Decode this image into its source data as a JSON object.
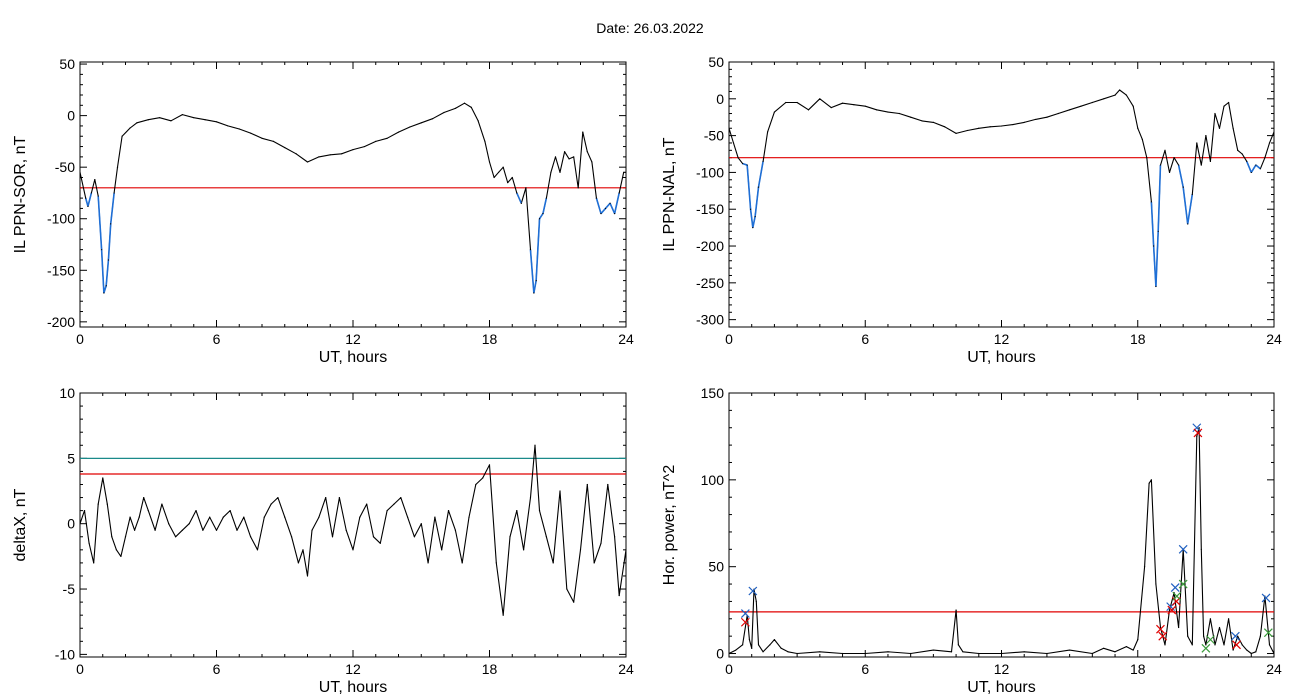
{
  "figure": {
    "date_label": "Date:",
    "date_value": "26.03.2022"
  },
  "chart_data": [
    {
      "type": "line",
      "xlabel": "UT, hours",
      "ylabel": "IL PPN-SOR, nT",
      "xlim": [
        0,
        24
      ],
      "ylim": [
        -205,
        52
      ],
      "xticks": [
        0,
        6,
        12,
        18,
        24
      ],
      "yticks": [
        -200,
        -150,
        -100,
        -50,
        0,
        50
      ],
      "x": [
        0,
        0.25,
        0.35,
        0.5,
        0.65,
        0.8,
        0.95,
        1.05,
        1.15,
        1.25,
        1.35,
        1.5,
        1.65,
        1.85,
        2.2,
        2.5,
        3.0,
        3.5,
        4.0,
        4.5,
        5.0,
        5.5,
        6.0,
        6.5,
        7.0,
        7.5,
        8.0,
        8.5,
        9.0,
        9.5,
        10.0,
        10.5,
        11.0,
        11.5,
        12.0,
        12.5,
        13.0,
        13.5,
        14.0,
        14.5,
        15.0,
        15.5,
        16.0,
        16.5,
        16.9,
        17.2,
        17.5,
        17.8,
        18.0,
        18.2,
        18.4,
        18.6,
        18.8,
        19.0,
        19.2,
        19.4,
        19.6,
        19.8,
        19.95,
        20.05,
        20.2,
        20.35,
        20.5,
        20.7,
        20.9,
        21.1,
        21.3,
        21.5,
        21.7,
        21.9,
        22.1,
        22.3,
        22.5,
        22.7,
        22.9,
        23.1,
        23.3,
        23.5,
        23.7,
        23.9,
        24.0
      ],
      "series": [
        {
          "color": "#000000",
          "values": [
            -55,
            -80,
            -88,
            -75,
            -62,
            -78,
            -130,
            -172,
            -165,
            -140,
            -105,
            -75,
            -50,
            -20,
            -12,
            -7,
            -4,
            -2,
            -5,
            1,
            -2,
            -4,
            -6,
            -10,
            -13,
            -17,
            -22,
            -25,
            -31,
            -37,
            -45,
            -40,
            -38,
            -37,
            -33,
            -30,
            -25,
            -22,
            -16,
            -11,
            -7,
            -3,
            3,
            7,
            12,
            8,
            -5,
            -25,
            -45,
            -60,
            -55,
            -50,
            -65,
            -60,
            -75,
            -85,
            -70,
            -130,
            -172,
            -160,
            -100,
            -95,
            -80,
            -55,
            -40,
            -55,
            -35,
            -42,
            -40,
            -70,
            -16,
            -35,
            -45,
            -80,
            -95,
            -90,
            -85,
            -95,
            -75,
            -55,
            -55
          ]
        }
      ],
      "threshold": {
        "value": -70,
        "color": "#e00000"
      },
      "highlight_color": "#1f6fd6"
    },
    {
      "type": "line",
      "xlabel": "UT, hours",
      "ylabel": "IL PPN-NAL, nT",
      "xlim": [
        0,
        24
      ],
      "ylim": [
        -310,
        50
      ],
      "xticks": [
        0,
        6,
        12,
        18,
        24
      ],
      "yticks": [
        -300,
        -250,
        -200,
        -150,
        -100,
        -50,
        0,
        50
      ],
      "x": [
        0,
        0.2,
        0.4,
        0.6,
        0.8,
        0.95,
        1.05,
        1.15,
        1.3,
        1.5,
        1.7,
        2.0,
        2.5,
        3.0,
        3.5,
        4.0,
        4.5,
        5.0,
        5.5,
        6.0,
        6.5,
        7.0,
        7.5,
        8.0,
        8.5,
        9.0,
        9.5,
        10.0,
        10.5,
        11.0,
        11.5,
        12.0,
        12.5,
        13.0,
        13.5,
        14.0,
        14.5,
        15.0,
        15.5,
        16.0,
        16.5,
        17.0,
        17.2,
        17.5,
        17.8,
        18.0,
        18.2,
        18.4,
        18.6,
        18.7,
        18.8,
        18.9,
        19.0,
        19.2,
        19.4,
        19.6,
        19.8,
        20.0,
        20.2,
        20.4,
        20.6,
        20.8,
        21.0,
        21.2,
        21.4,
        21.6,
        21.8,
        22.0,
        22.2,
        22.4,
        22.6,
        22.8,
        23.0,
        23.2,
        23.4,
        23.6,
        23.8,
        24.0
      ],
      "series": [
        {
          "color": "#000000",
          "values": [
            -40,
            -60,
            -80,
            -88,
            -90,
            -150,
            -175,
            -160,
            -120,
            -85,
            -45,
            -18,
            -5,
            -5,
            -15,
            0,
            -12,
            -6,
            -8,
            -10,
            -15,
            -18,
            -20,
            -25,
            -30,
            -32,
            -38,
            -47,
            -43,
            -40,
            -38,
            -37,
            -35,
            -32,
            -28,
            -25,
            -20,
            -15,
            -10,
            -5,
            0,
            5,
            12,
            5,
            -10,
            -40,
            -55,
            -80,
            -140,
            -200,
            -255,
            -180,
            -90,
            -70,
            -100,
            -80,
            -90,
            -120,
            -170,
            -130,
            -60,
            -90,
            -50,
            -85,
            -20,
            -40,
            -10,
            -5,
            -40,
            -70,
            -75,
            -85,
            -100,
            -90,
            -95,
            -80,
            -60,
            -45
          ]
        }
      ],
      "threshold": {
        "value": -80,
        "color": "#e00000"
      },
      "highlight_color": "#1f6fd6"
    },
    {
      "type": "line",
      "xlabel": "UT, hours",
      "ylabel": "deltaX, nT",
      "xlim": [
        0,
        24
      ],
      "ylim": [
        -10.2,
        10
      ],
      "xticks": [
        0,
        6,
        12,
        18,
        24
      ],
      "yticks": [
        -10,
        -5,
        0,
        5,
        10
      ],
      "x": [
        0,
        0.2,
        0.4,
        0.6,
        0.8,
        1.0,
        1.2,
        1.4,
        1.6,
        1.8,
        2.0,
        2.2,
        2.4,
        2.6,
        2.8,
        3.0,
        3.3,
        3.6,
        3.9,
        4.2,
        4.5,
        4.8,
        5.1,
        5.4,
        5.7,
        6.0,
        6.3,
        6.6,
        6.9,
        7.2,
        7.5,
        7.8,
        8.1,
        8.4,
        8.7,
        9.0,
        9.3,
        9.6,
        9.8,
        10.0,
        10.2,
        10.5,
        10.8,
        11.1,
        11.4,
        11.7,
        12.0,
        12.3,
        12.6,
        12.9,
        13.2,
        13.5,
        13.8,
        14.1,
        14.4,
        14.7,
        15.0,
        15.3,
        15.6,
        15.9,
        16.2,
        16.5,
        16.8,
        17.1,
        17.4,
        17.7,
        18.0,
        18.3,
        18.6,
        18.9,
        19.2,
        19.5,
        19.8,
        20.0,
        20.2,
        20.5,
        20.8,
        21.1,
        21.4,
        21.7,
        22.0,
        22.3,
        22.6,
        22.9,
        23.2,
        23.5,
        23.7,
        24.0
      ],
      "series": [
        {
          "color": "#000000",
          "values": [
            0,
            1,
            -1.5,
            -3,
            1.5,
            3.5,
            1.5,
            -1,
            -2,
            -2.5,
            -1,
            0.5,
            -0.5,
            0.5,
            2,
            1,
            -0.5,
            1.5,
            0,
            -1,
            -0.5,
            0,
            1,
            -0.5,
            0.5,
            -0.5,
            0.5,
            1,
            -0.5,
            0.5,
            -1,
            -2,
            0.5,
            1.5,
            2,
            0.5,
            -1,
            -3,
            -2,
            -4,
            -0.5,
            0.5,
            2,
            -1,
            2,
            -0.5,
            -2,
            0.5,
            1.5,
            -1,
            -1.5,
            1,
            1.5,
            2,
            0.5,
            -1,
            0,
            -3,
            0.5,
            -2,
            1,
            -0.5,
            -3,
            0.5,
            3,
            3.5,
            4.5,
            -3,
            -7,
            -1,
            1,
            -2,
            2,
            6,
            1,
            -1,
            -3,
            2.5,
            -5,
            -6,
            -2,
            3,
            -3,
            -1.5,
            3,
            -1,
            -5.5,
            -2
          ]
        }
      ],
      "thresholds": [
        {
          "value": 5,
          "color": "#1a8a8a"
        },
        {
          "value": 3.8,
          "color": "#e00000"
        }
      ]
    },
    {
      "type": "line",
      "xlabel": "UT, hours",
      "ylabel": "Hor. power, nT^2",
      "xlim": [
        0,
        24
      ],
      "ylim": [
        -2,
        150
      ],
      "xticks": [
        0,
        6,
        12,
        18,
        24
      ],
      "yticks": [
        0,
        50,
        100,
        150
      ],
      "x": [
        0,
        0.3,
        0.6,
        0.8,
        0.9,
        1.0,
        1.1,
        1.2,
        1.3,
        1.5,
        1.8,
        2.0,
        2.3,
        2.6,
        3.0,
        4.0,
        5.0,
        6.0,
        7.0,
        8.0,
        9.0,
        9.8,
        10.0,
        10.1,
        10.3,
        11.0,
        12.0,
        13.0,
        14.0,
        15.0,
        16.0,
        16.5,
        17.0,
        17.5,
        17.8,
        18.0,
        18.3,
        18.5,
        18.6,
        18.8,
        19.0,
        19.2,
        19.4,
        19.6,
        19.8,
        20.0,
        20.2,
        20.4,
        20.6,
        20.7,
        20.8,
        20.9,
        21.0,
        21.2,
        21.4,
        21.6,
        21.8,
        22.0,
        22.2,
        22.4,
        22.6,
        22.8,
        23.0,
        23.2,
        23.4,
        23.6,
        23.8,
        24.0
      ],
      "series": [
        {
          "color": "#000000",
          "values": [
            0,
            2,
            5,
            22,
            8,
            3,
            37,
            30,
            5,
            1,
            5,
            8,
            3,
            1,
            0,
            1,
            0,
            0,
            1,
            0,
            2,
            1,
            25,
            5,
            1,
            0,
            0,
            1,
            0,
            2,
            0,
            3,
            1,
            4,
            2,
            8,
            50,
            98,
            100,
            40,
            15,
            5,
            25,
            35,
            15,
            60,
            10,
            5,
            125,
            130,
            60,
            10,
            5,
            20,
            5,
            15,
            5,
            20,
            2,
            10,
            5,
            2,
            0,
            1,
            10,
            33,
            5,
            0
          ]
        }
      ],
      "threshold": {
        "value": 24,
        "color": "#e00000"
      },
      "markers": [
        {
          "x": 0.72,
          "y": 18,
          "color": "#e00000"
        },
        {
          "x": 0.72,
          "y": 23,
          "color": "#2060c0"
        },
        {
          "x": 1.05,
          "y": 36,
          "color": "#2060c0"
        },
        {
          "x": 19.0,
          "y": 14,
          "color": "#e00000"
        },
        {
          "x": 19.1,
          "y": 10,
          "color": "#e00000"
        },
        {
          "x": 19.45,
          "y": 27,
          "color": "#2060c0"
        },
        {
          "x": 19.5,
          "y": 25,
          "color": "#e00000"
        },
        {
          "x": 19.65,
          "y": 38,
          "color": "#2060c0"
        },
        {
          "x": 19.7,
          "y": 30,
          "color": "#e00000"
        },
        {
          "x": 19.72,
          "y": 33,
          "color": "#3a9a3a"
        },
        {
          "x": 20.0,
          "y": 60,
          "color": "#2060c0"
        },
        {
          "x": 20.0,
          "y": 40,
          "color": "#3a9a3a"
        },
        {
          "x": 20.6,
          "y": 130,
          "color": "#2060c0"
        },
        {
          "x": 20.65,
          "y": 127,
          "color": "#e00000"
        },
        {
          "x": 21.0,
          "y": 3,
          "color": "#3a9a3a"
        },
        {
          "x": 21.2,
          "y": 8,
          "color": "#3a9a3a"
        },
        {
          "x": 22.3,
          "y": 10,
          "color": "#2060c0"
        },
        {
          "x": 22.35,
          "y": 5,
          "color": "#e00000"
        },
        {
          "x": 23.65,
          "y": 32,
          "color": "#2060c0"
        },
        {
          "x": 23.75,
          "y": 12,
          "color": "#3a9a3a"
        }
      ]
    }
  ]
}
